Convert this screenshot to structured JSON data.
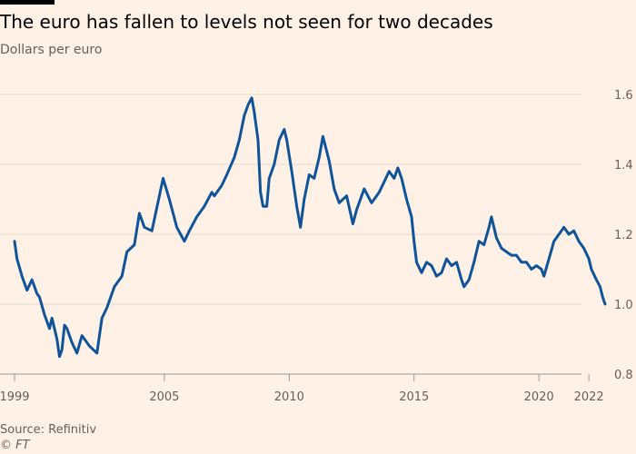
{
  "header": {
    "title": "The euro has fallen to levels not seen for two decades",
    "subtitle": "Dollars per euro"
  },
  "footer": {
    "source": "Source: Refinitiv",
    "credit": "© FT"
  },
  "colors": {
    "line": "#0f5499",
    "background": "#fff1e5",
    "grid": "#e6d9ce",
    "tick_text": "#66605c"
  },
  "chart_data": {
    "type": "line",
    "title": "The euro has fallen to levels not seen for two decades",
    "ylabel": "Dollars per euro",
    "xlabel": "",
    "xlim": [
      1999.0,
      2022.65
    ],
    "ylim": [
      0.8,
      1.6
    ],
    "x_ticks": [
      1999,
      2005,
      2010,
      2015,
      2020,
      2022
    ],
    "x_tick_labels": [
      "1999",
      "2005",
      "2010",
      "2015",
      "2020",
      "2022"
    ],
    "y_ticks": [
      0.8,
      1.0,
      1.2,
      1.4,
      1.6
    ],
    "y_tick_labels": [
      "0.8",
      "1.0",
      "1.2",
      "1.4",
      "1.6"
    ],
    "grid": "horizontal",
    "y_axis_side": "right",
    "series": [
      {
        "x": [
          1999.0,
          1999.1,
          1999.3,
          1999.5,
          1999.7,
          1999.9,
          2000.0,
          2000.2,
          2000.4,
          2000.5,
          2000.7,
          2000.8,
          2000.9,
          2001.0,
          2001.1,
          2001.3,
          2001.5,
          2001.7,
          2001.8,
          2002.0,
          2002.3,
          2002.5,
          2002.7,
          2003.0,
          2003.3,
          2003.5,
          2003.8,
          2004.0,
          2004.2,
          2004.5,
          2004.8,
          2004.95,
          2005.2,
          2005.5,
          2005.8,
          2006.0,
          2006.3,
          2006.6,
          2006.9,
          2007.0,
          2007.3,
          2007.5,
          2007.8,
          2008.0,
          2008.2,
          2008.35,
          2008.5,
          2008.6,
          2008.75,
          2008.85,
          2008.95,
          2009.1,
          2009.2,
          2009.4,
          2009.6,
          2009.8,
          2009.9,
          2010.1,
          2010.3,
          2010.45,
          2010.6,
          2010.8,
          2011.0,
          2011.2,
          2011.35,
          2011.6,
          2011.8,
          2012.0,
          2012.3,
          2012.55,
          2012.7,
          2013.0,
          2013.3,
          2013.6,
          2013.8,
          2014.0,
          2014.2,
          2014.35,
          2014.5,
          2014.7,
          2014.9,
          2015.0,
          2015.1,
          2015.3,
          2015.5,
          2015.7,
          2015.9,
          2016.1,
          2016.3,
          2016.5,
          2016.7,
          2016.9,
          2017.0,
          2017.2,
          2017.4,
          2017.6,
          2017.8,
          2018.0,
          2018.1,
          2018.3,
          2018.5,
          2018.7,
          2018.9,
          2019.1,
          2019.3,
          2019.5,
          2019.7,
          2019.9,
          2020.1,
          2020.2,
          2020.4,
          2020.6,
          2020.8,
          2021.0,
          2021.2,
          2021.4,
          2021.6,
          2021.8,
          2022.0,
          2022.1,
          2022.3,
          2022.45,
          2022.55,
          2022.65
        ],
        "values": [
          1.18,
          1.13,
          1.08,
          1.04,
          1.07,
          1.03,
          1.02,
          0.97,
          0.93,
          0.96,
          0.9,
          0.85,
          0.87,
          0.94,
          0.93,
          0.89,
          0.86,
          0.91,
          0.9,
          0.88,
          0.86,
          0.96,
          0.99,
          1.05,
          1.08,
          1.15,
          1.17,
          1.26,
          1.22,
          1.21,
          1.31,
          1.36,
          1.3,
          1.22,
          1.18,
          1.21,
          1.25,
          1.28,
          1.32,
          1.31,
          1.34,
          1.37,
          1.42,
          1.47,
          1.54,
          1.57,
          1.59,
          1.55,
          1.47,
          1.32,
          1.28,
          1.28,
          1.36,
          1.4,
          1.47,
          1.5,
          1.47,
          1.38,
          1.28,
          1.22,
          1.3,
          1.37,
          1.36,
          1.42,
          1.48,
          1.41,
          1.33,
          1.29,
          1.31,
          1.23,
          1.27,
          1.33,
          1.29,
          1.32,
          1.35,
          1.38,
          1.36,
          1.39,
          1.36,
          1.3,
          1.25,
          1.18,
          1.12,
          1.09,
          1.12,
          1.11,
          1.08,
          1.09,
          1.13,
          1.11,
          1.12,
          1.07,
          1.05,
          1.07,
          1.12,
          1.18,
          1.17,
          1.22,
          1.25,
          1.19,
          1.16,
          1.15,
          1.14,
          1.14,
          1.12,
          1.12,
          1.1,
          1.11,
          1.1,
          1.08,
          1.13,
          1.18,
          1.2,
          1.22,
          1.2,
          1.21,
          1.18,
          1.16,
          1.13,
          1.1,
          1.07,
          1.05,
          1.02,
          1.0
        ]
      }
    ]
  }
}
